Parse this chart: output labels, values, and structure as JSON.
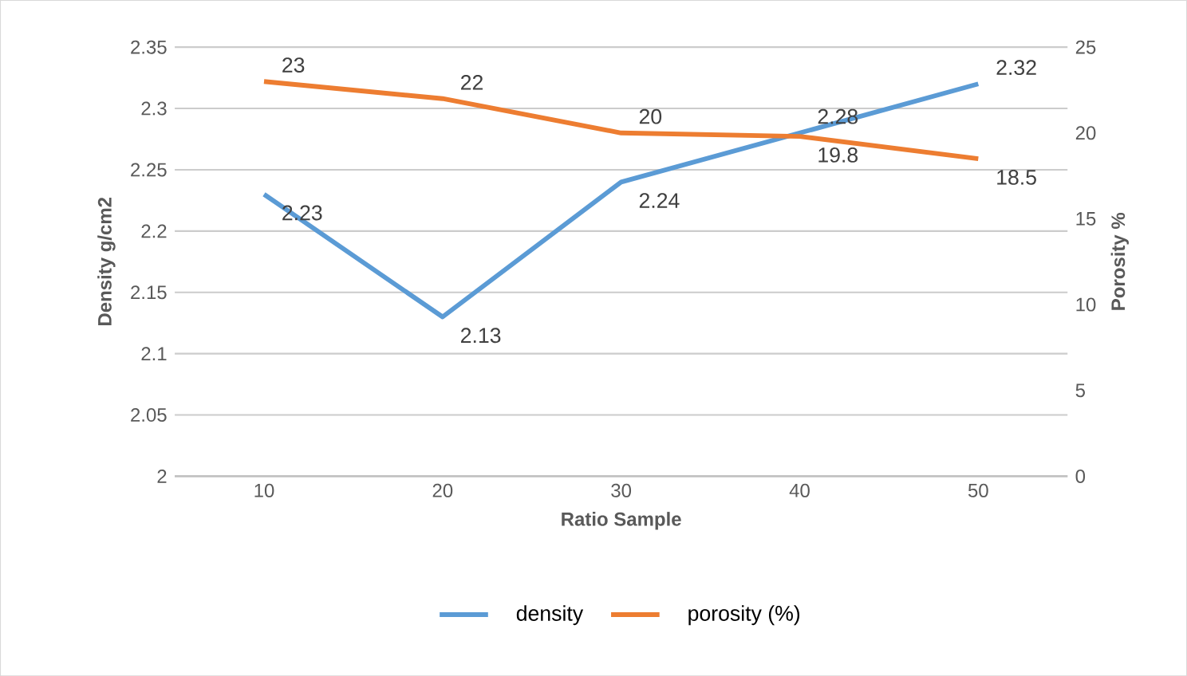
{
  "chart_data": {
    "type": "line",
    "xlabel": "Ratio Sample",
    "ylabel": "Density g/cm2",
    "y2label": "Porosity %",
    "categories": [
      "10",
      "20",
      "30",
      "40",
      "50"
    ],
    "series": [
      {
        "name": "density",
        "color": "#5b9bd5",
        "values": [
          2.23,
          2.13,
          2.24,
          2.28,
          2.32
        ]
      },
      {
        "name": "porosity (%)",
        "color": "#ed7d31",
        "axis": "y2",
        "values": [
          23,
          22,
          20,
          19.8,
          18.5
        ]
      }
    ],
    "ylim": [
      2,
      2.35
    ],
    "yticks": [
      2,
      2.05,
      2.1,
      2.15,
      2.2,
      2.25,
      2.3,
      2.35
    ],
    "y2lim": [
      0,
      25
    ],
    "y2ticks": [
      0,
      5,
      10,
      15,
      20,
      25
    ],
    "grid": "y",
    "legend": "bottom",
    "data_labels": true,
    "marker": "none",
    "line_style": "solid"
  }
}
